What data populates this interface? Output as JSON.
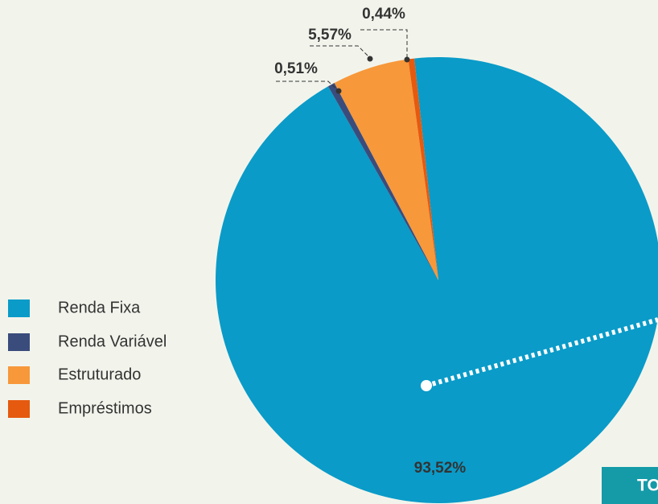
{
  "chart_data": {
    "type": "pie",
    "categories": [
      "Renda Fixa",
      "Renda Variável",
      "Estruturado",
      "Empréstimos"
    ],
    "values": [
      93.52,
      0.51,
      5.57,
      0.44
    ],
    "value_labels": [
      "93,52%",
      "0,51%",
      "5,57%",
      "0,44%"
    ],
    "colors": [
      "#0a9bc8",
      "#3a4c7c",
      "#f7983a",
      "#e55a0f"
    ],
    "annotation": "TO"
  }
}
